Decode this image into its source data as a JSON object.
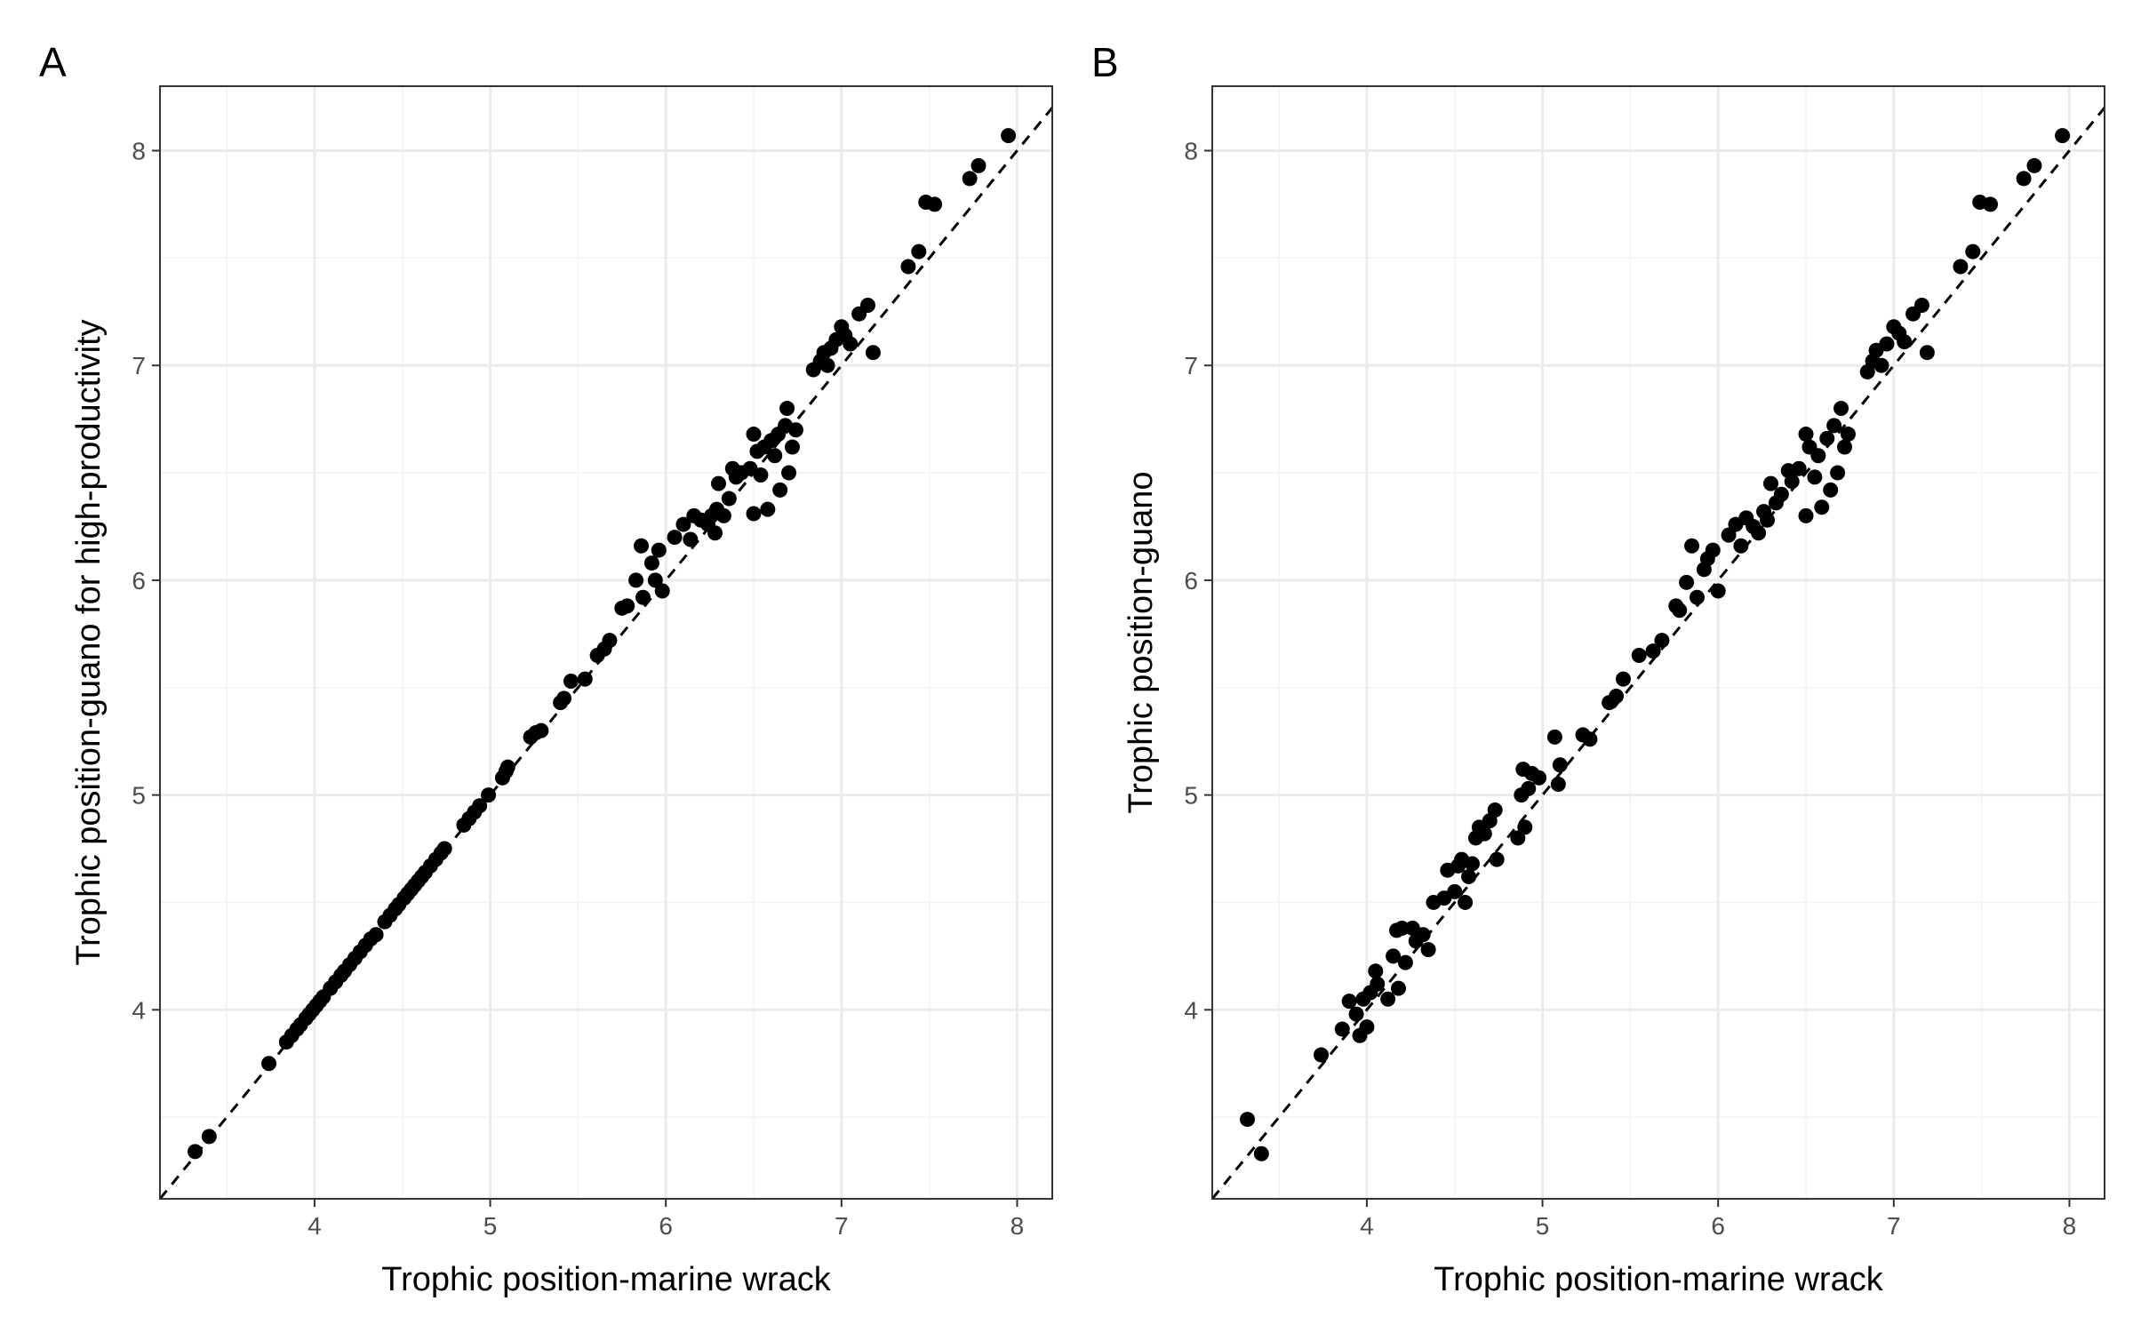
{
  "chart_data": [
    {
      "type": "scatter",
      "panel_label": "A",
      "xlabel": "Trophic position-marine wrack",
      "ylabel": "Trophic position-guano for high-productivity",
      "xlim": [
        3.12,
        8.2
      ],
      "ylim": [
        3.12,
        8.3
      ],
      "xticks": [
        4,
        5,
        6,
        7,
        8
      ],
      "yticks": [
        4,
        5,
        6,
        7,
        8
      ],
      "grid": true,
      "reference_line": {
        "type": "identity",
        "style": "dashed"
      },
      "series": [
        {
          "points": [
            [
              3.32,
              3.34
            ],
            [
              3.4,
              3.41
            ],
            [
              3.74,
              3.75
            ],
            [
              3.84,
              3.85
            ],
            [
              3.87,
              3.88
            ],
            [
              3.9,
              3.91
            ],
            [
              3.92,
              3.93
            ],
            [
              3.95,
              3.96
            ],
            [
              3.97,
              3.98
            ],
            [
              3.99,
              4.0
            ],
            [
              4.01,
              4.02
            ],
            [
              4.03,
              4.04
            ],
            [
              4.05,
              4.06
            ],
            [
              4.09,
              4.1
            ],
            [
              4.12,
              4.13
            ],
            [
              4.15,
              4.16
            ],
            [
              4.17,
              4.18
            ],
            [
              4.2,
              4.21
            ],
            [
              4.23,
              4.24
            ],
            [
              4.26,
              4.27
            ],
            [
              4.29,
              4.3
            ],
            [
              4.32,
              4.33
            ],
            [
              4.35,
              4.35
            ],
            [
              4.4,
              4.41
            ],
            [
              4.43,
              4.44
            ],
            [
              4.46,
              4.47
            ],
            [
              4.48,
              4.49
            ],
            [
              4.51,
              4.52
            ],
            [
              4.53,
              4.54
            ],
            [
              4.55,
              4.56
            ],
            [
              4.57,
              4.58
            ],
            [
              4.59,
              4.6
            ],
            [
              4.61,
              4.62
            ],
            [
              4.63,
              4.64
            ],
            [
              4.66,
              4.67
            ],
            [
              4.69,
              4.7
            ],
            [
              4.72,
              4.73
            ],
            [
              4.74,
              4.75
            ],
            [
              4.85,
              4.86
            ],
            [
              4.88,
              4.89
            ],
            [
              4.91,
              4.92
            ],
            [
              4.94,
              4.95
            ],
            [
              4.99,
              5.0
            ],
            [
              5.07,
              5.08
            ],
            [
              5.09,
              5.11
            ],
            [
              5.1,
              5.13
            ],
            [
              5.23,
              5.27
            ],
            [
              5.26,
              5.29
            ],
            [
              5.29,
              5.3
            ],
            [
              5.4,
              5.43
            ],
            [
              5.42,
              5.45
            ],
            [
              5.46,
              5.53
            ],
            [
              5.54,
              5.54
            ],
            [
              5.61,
              5.65
            ],
            [
              5.65,
              5.68
            ],
            [
              5.68,
              5.72
            ],
            [
              5.75,
              5.87
            ],
            [
              5.78,
              5.88
            ],
            [
              5.83,
              6.0
            ],
            [
              5.86,
              6.16
            ],
            [
              5.87,
              5.92
            ],
            [
              5.92,
              6.08
            ],
            [
              5.94,
              6.0
            ],
            [
              5.96,
              6.14
            ],
            [
              5.98,
              5.95
            ],
            [
              6.05,
              6.2
            ],
            [
              6.1,
              6.26
            ],
            [
              6.14,
              6.19
            ],
            [
              6.16,
              6.3
            ],
            [
              6.2,
              6.28
            ],
            [
              6.24,
              6.26
            ],
            [
              6.26,
              6.3
            ],
            [
              6.28,
              6.22
            ],
            [
              6.29,
              6.33
            ],
            [
              6.3,
              6.45
            ],
            [
              6.33,
              6.3
            ],
            [
              6.36,
              6.38
            ],
            [
              6.38,
              6.52
            ],
            [
              6.4,
              6.48
            ],
            [
              6.43,
              6.5
            ],
            [
              6.48,
              6.52
            ],
            [
              6.5,
              6.68
            ],
            [
              6.5,
              6.31
            ],
            [
              6.52,
              6.6
            ],
            [
              6.54,
              6.49
            ],
            [
              6.56,
              6.62
            ],
            [
              6.58,
              6.33
            ],
            [
              6.6,
              6.65
            ],
            [
              6.62,
              6.58
            ],
            [
              6.64,
              6.68
            ],
            [
              6.65,
              6.42
            ],
            [
              6.68,
              6.72
            ],
            [
              6.69,
              6.8
            ],
            [
              6.7,
              6.5
            ],
            [
              6.72,
              6.62
            ],
            [
              6.74,
              6.7
            ],
            [
              6.84,
              6.98
            ],
            [
              6.88,
              7.02
            ],
            [
              6.9,
              7.06
            ],
            [
              6.92,
              7.0
            ],
            [
              6.94,
              7.08
            ],
            [
              6.97,
              7.12
            ],
            [
              7.0,
              7.18
            ],
            [
              7.02,
              7.14
            ],
            [
              7.05,
              7.1
            ],
            [
              7.1,
              7.24
            ],
            [
              7.15,
              7.28
            ],
            [
              7.18,
              7.06
            ],
            [
              7.38,
              7.46
            ],
            [
              7.44,
              7.53
            ],
            [
              7.48,
              7.76
            ],
            [
              7.53,
              7.75
            ],
            [
              7.73,
              7.87
            ],
            [
              7.78,
              7.93
            ],
            [
              7.95,
              8.07
            ]
          ]
        }
      ]
    },
    {
      "type": "scatter",
      "panel_label": "B",
      "xlabel": "Trophic position-marine wrack",
      "ylabel": "Trophic position-guano",
      "xlim": [
        3.12,
        8.2
      ],
      "ylim": [
        3.12,
        8.3
      ],
      "xticks": [
        4,
        5,
        6,
        7,
        8
      ],
      "yticks": [
        4,
        5,
        6,
        7,
        8
      ],
      "grid": true,
      "reference_line": {
        "type": "identity",
        "style": "dashed"
      },
      "series": [
        {
          "points": [
            [
              3.32,
              3.49
            ],
            [
              3.4,
              3.33
            ],
            [
              3.74,
              3.79
            ],
            [
              3.86,
              3.91
            ],
            [
              3.9,
              4.04
            ],
            [
              3.94,
              3.98
            ],
            [
              3.96,
              3.88
            ],
            [
              3.98,
              4.05
            ],
            [
              4.0,
              3.92
            ],
            [
              4.02,
              4.08
            ],
            [
              4.05,
              4.18
            ],
            [
              4.06,
              4.12
            ],
            [
              4.12,
              4.05
            ],
            [
              4.15,
              4.25
            ],
            [
              4.17,
              4.37
            ],
            [
              4.18,
              4.1
            ],
            [
              4.2,
              4.38
            ],
            [
              4.22,
              4.22
            ],
            [
              4.26,
              4.38
            ],
            [
              4.28,
              4.32
            ],
            [
              4.32,
              4.35
            ],
            [
              4.35,
              4.28
            ],
            [
              4.38,
              4.5
            ],
            [
              4.44,
              4.52
            ],
            [
              4.46,
              4.65
            ],
            [
              4.5,
              4.55
            ],
            [
              4.52,
              4.67
            ],
            [
              4.54,
              4.7
            ],
            [
              4.56,
              4.5
            ],
            [
              4.58,
              4.62
            ],
            [
              4.6,
              4.68
            ],
            [
              4.62,
              4.8
            ],
            [
              4.64,
              4.85
            ],
            [
              4.67,
              4.82
            ],
            [
              4.7,
              4.88
            ],
            [
              4.73,
              4.93
            ],
            [
              4.74,
              4.7
            ],
            [
              4.86,
              4.8
            ],
            [
              4.88,
              5.0
            ],
            [
              4.89,
              5.12
            ],
            [
              4.9,
              4.85
            ],
            [
              4.92,
              5.03
            ],
            [
              4.94,
              5.1
            ],
            [
              4.98,
              5.08
            ],
            [
              5.07,
              5.27
            ],
            [
              5.09,
              5.05
            ],
            [
              5.1,
              5.14
            ],
            [
              5.23,
              5.28
            ],
            [
              5.27,
              5.26
            ],
            [
              5.38,
              5.43
            ],
            [
              5.42,
              5.46
            ],
            [
              5.46,
              5.54
            ],
            [
              5.55,
              5.65
            ],
            [
              5.63,
              5.67
            ],
            [
              5.68,
              5.72
            ],
            [
              5.76,
              5.88
            ],
            [
              5.78,
              5.86
            ],
            [
              5.82,
              5.99
            ],
            [
              5.85,
              6.16
            ],
            [
              5.88,
              5.92
            ],
            [
              5.92,
              6.05
            ],
            [
              5.94,
              6.1
            ],
            [
              5.97,
              6.14
            ],
            [
              6.0,
              5.95
            ],
            [
              6.06,
              6.21
            ],
            [
              6.1,
              6.26
            ],
            [
              6.13,
              6.16
            ],
            [
              6.16,
              6.29
            ],
            [
              6.2,
              6.25
            ],
            [
              6.23,
              6.22
            ],
            [
              6.26,
              6.32
            ],
            [
              6.28,
              6.28
            ],
            [
              6.3,
              6.45
            ],
            [
              6.33,
              6.36
            ],
            [
              6.36,
              6.4
            ],
            [
              6.4,
              6.51
            ],
            [
              6.42,
              6.46
            ],
            [
              6.46,
              6.52
            ],
            [
              6.5,
              6.68
            ],
            [
              6.5,
              6.3
            ],
            [
              6.52,
              6.62
            ],
            [
              6.55,
              6.48
            ],
            [
              6.57,
              6.58
            ],
            [
              6.59,
              6.34
            ],
            [
              6.62,
              6.66
            ],
            [
              6.64,
              6.42
            ],
            [
              6.66,
              6.72
            ],
            [
              6.68,
              6.5
            ],
            [
              6.7,
              6.8
            ],
            [
              6.72,
              6.62
            ],
            [
              6.74,
              6.68
            ],
            [
              6.85,
              6.97
            ],
            [
              6.88,
              7.02
            ],
            [
              6.9,
              7.07
            ],
            [
              6.93,
              7.0
            ],
            [
              6.96,
              7.1
            ],
            [
              7.0,
              7.18
            ],
            [
              7.03,
              7.15
            ],
            [
              7.06,
              7.11
            ],
            [
              7.11,
              7.24
            ],
            [
              7.16,
              7.28
            ],
            [
              7.19,
              7.06
            ],
            [
              7.38,
              7.46
            ],
            [
              7.45,
              7.53
            ],
            [
              7.49,
              7.76
            ],
            [
              7.55,
              7.75
            ],
            [
              7.74,
              7.87
            ],
            [
              7.8,
              7.93
            ],
            [
              7.96,
              8.07
            ]
          ]
        }
      ]
    }
  ]
}
